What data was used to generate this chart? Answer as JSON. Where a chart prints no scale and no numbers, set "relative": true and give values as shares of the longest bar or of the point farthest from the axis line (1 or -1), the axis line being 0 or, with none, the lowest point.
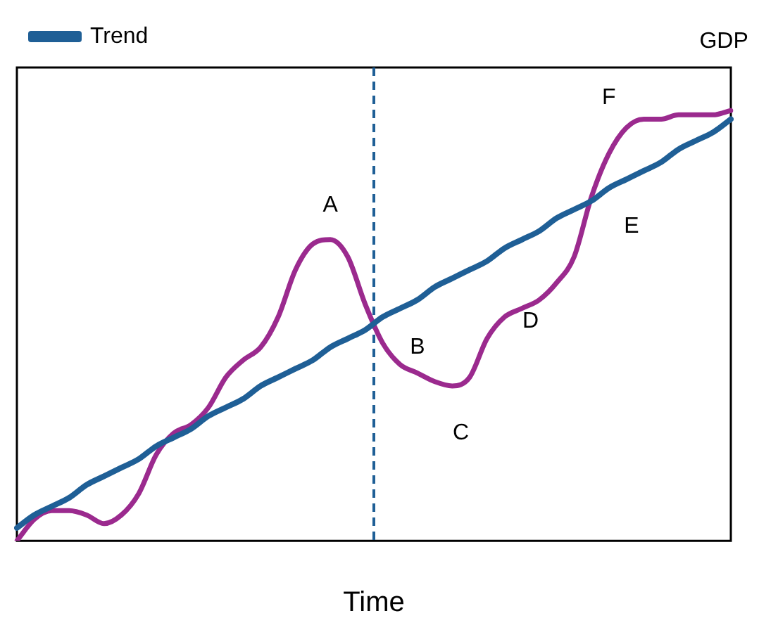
{
  "chart_data": {
    "type": "line",
    "relative": true,
    "xlabel": "Time",
    "legend": "top left",
    "grid": false,
    "marker": "none",
    "categories": [
      null,
      null,
      null,
      null,
      null,
      null,
      null,
      null,
      null,
      null,
      null,
      null,
      null,
      null,
      null,
      null,
      null,
      null,
      null,
      null,
      null,
      null,
      null,
      null,
      null,
      null,
      null,
      null,
      null,
      null,
      null,
      null,
      null,
      null,
      null,
      null,
      null,
      null,
      null,
      null,
      null,
      null
    ],
    "series": [
      {
        "name": "Trend",
        "color": "#1f5f96",
        "values": [
          0.03,
          0.06,
          0.08,
          0.1,
          0.13,
          0.15,
          0.17,
          0.19,
          0.22,
          0.24,
          0.26,
          0.29,
          0.31,
          0.33,
          0.36,
          0.38,
          0.4,
          0.42,
          0.45,
          0.47,
          0.49,
          0.52,
          0.54,
          0.56,
          0.59,
          0.61,
          0.63,
          0.65,
          0.68,
          0.7,
          0.72,
          0.75,
          0.77,
          0.79,
          0.82,
          0.84,
          0.86,
          0.88,
          0.91,
          0.93,
          0.95,
          0.98
        ]
      },
      {
        "color": "#9b2a8e",
        "values": [
          0,
          0.05,
          0.07,
          0.07,
          0.06,
          0.04,
          0.06,
          0.11,
          0.2,
          0.25,
          0.27,
          0.31,
          0.38,
          0.42,
          0.45,
          0.52,
          0.63,
          0.69,
          0.7,
          0.66,
          0.55,
          0.46,
          0.41,
          0.39,
          0.37,
          0.36,
          0.38,
          0.47,
          0.52,
          0.54,
          0.56,
          0.6,
          0.66,
          0.8,
          0.9,
          0.96,
          0.98,
          0.98,
          0.99,
          0.99,
          0.99,
          1
        ]
      }
    ],
    "annotations": [
      "A",
      "B",
      "C",
      "D",
      "E",
      "F",
      "GDP"
    ]
  }
}
